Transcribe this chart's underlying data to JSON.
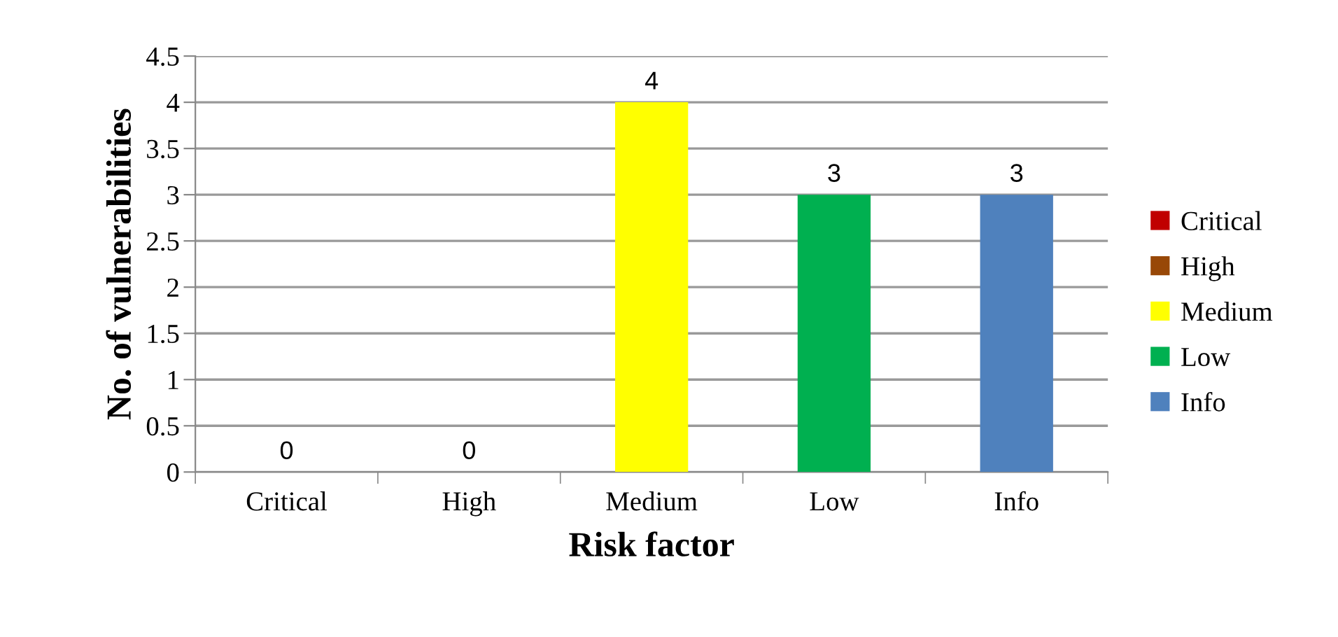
{
  "chart_data": {
    "type": "bar",
    "xlabel": "Risk factor",
    "ylabel": "No. of vulnerabilities",
    "categories": [
      "Critical",
      "High",
      "Medium",
      "Low",
      "Info"
    ],
    "series": [
      {
        "name": "Critical",
        "color": "#c00000",
        "values": [
          0,
          null,
          null,
          null,
          null
        ]
      },
      {
        "name": "High",
        "color": "#984807",
        "values": [
          null,
          0,
          null,
          null,
          null
        ]
      },
      {
        "name": "Medium",
        "color": "#ffff00",
        "values": [
          null,
          null,
          4,
          null,
          null
        ]
      },
      {
        "name": "Low",
        "color": "#00b050",
        "values": [
          null,
          null,
          null,
          3,
          null
        ]
      },
      {
        "name": "Info",
        "color": "#4f81bd",
        "values": [
          null,
          null,
          null,
          null,
          3
        ]
      }
    ],
    "ylim": [
      0,
      4.5
    ],
    "yticks": [
      0,
      0.5,
      1,
      1.5,
      2,
      2.5,
      3,
      3.5,
      4,
      4.5
    ],
    "grid": "y",
    "legend": "right",
    "data_labels": true
  }
}
